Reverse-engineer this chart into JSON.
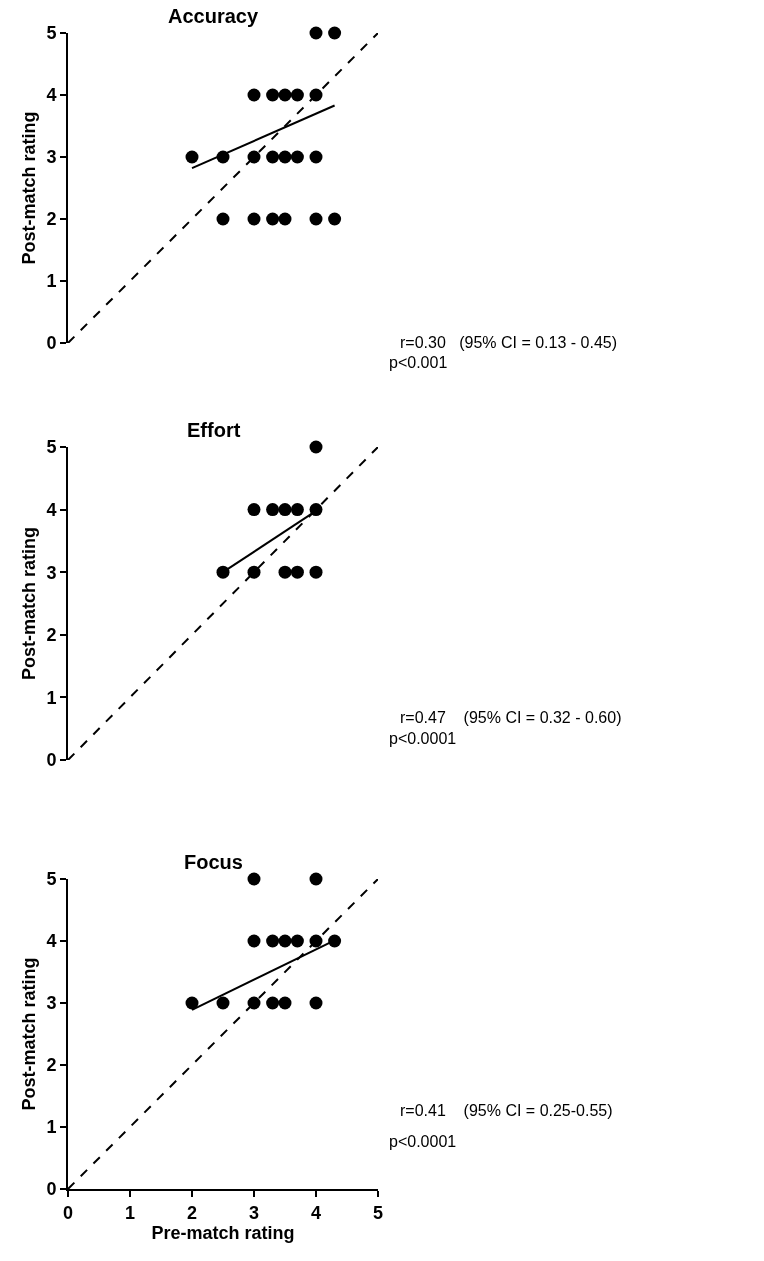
{
  "chart_data": [
    {
      "type": "scatter",
      "title": "Accuracy",
      "ylabel": "Post-match rating",
      "xlim": [
        0,
        5
      ],
      "ylim": [
        0,
        5
      ],
      "yticks": [
        0,
        1,
        2,
        3,
        4,
        5
      ],
      "tick_labels": "y",
      "series": [
        {
          "color": "#000000",
          "marker": "circle",
          "x": [
            4,
            4.3,
            3,
            3.3,
            3.5,
            3.7,
            4,
            2,
            2.5,
            3,
            3.3,
            3.5,
            3.7,
            4,
            2.5,
            3,
            3.3,
            3.5,
            4,
            4.3
          ],
          "values": [
            5,
            5,
            4,
            4,
            4,
            4,
            4,
            3,
            3,
            3,
            3,
            3,
            3,
            3,
            2,
            2,
            2,
            2,
            2,
            2
          ]
        },
        {
          "type": "line",
          "color": "#000000",
          "marker": "none",
          "line_style": "solid",
          "x": [
            2,
            4.3
          ],
          "values": [
            2.82,
            3.83
          ]
        },
        {
          "type": "line",
          "color": "#000000",
          "marker": "none",
          "line_style": "dashed",
          "x": [
            0,
            5
          ],
          "values": [
            0,
            5
          ]
        }
      ],
      "annotations": [
        "r=0.30   (95% CI = 0.13 - 0.45)",
        "p<0.001"
      ]
    },
    {
      "type": "scatter",
      "title": "Effort",
      "ylabel": "Post-match rating",
      "xlim": [
        0,
        5
      ],
      "ylim": [
        0,
        5
      ],
      "yticks": [
        0,
        1,
        2,
        3,
        4,
        5
      ],
      "tick_labels": "y",
      "series": [
        {
          "color": "#000000",
          "marker": "circle",
          "x": [
            4,
            3,
            3.3,
            3.5,
            3.7,
            4,
            2.5,
            3,
            3.5,
            3.7,
            4
          ],
          "values": [
            5,
            4,
            4,
            4,
            4,
            4,
            3,
            3,
            3,
            3,
            3
          ]
        },
        {
          "type": "line",
          "color": "#000000",
          "marker": "none",
          "line_style": "solid",
          "x": [
            2.5,
            4
          ],
          "values": [
            3.0,
            3.98
          ]
        },
        {
          "type": "line",
          "color": "#000000",
          "marker": "none",
          "line_style": "dashed",
          "x": [
            0,
            5
          ],
          "values": [
            0,
            5
          ]
        }
      ],
      "annotations": [
        "r=0.47    (95% CI = 0.32 - 0.60)",
        "p<0.0001"
      ]
    },
    {
      "type": "scatter",
      "title": "Focus",
      "xlabel": "Pre-match rating",
      "ylabel": "Post-match rating",
      "xlim": [
        0,
        5
      ],
      "ylim": [
        0,
        5
      ],
      "xticks": [
        0,
        1,
        2,
        3,
        4,
        5
      ],
      "yticks": [
        0,
        1,
        2,
        3,
        4,
        5
      ],
      "series": [
        {
          "color": "#000000",
          "marker": "circle",
          "x": [
            3,
            4,
            3,
            3.3,
            3.5,
            3.7,
            4,
            4.3,
            2,
            2.5,
            3,
            3.3,
            3.5,
            4
          ],
          "values": [
            5,
            5,
            4,
            4,
            4,
            4,
            4,
            4,
            3,
            3,
            3,
            3,
            3,
            3
          ]
        },
        {
          "type": "line",
          "color": "#000000",
          "marker": "none",
          "line_style": "solid",
          "x": [
            2,
            4.3
          ],
          "values": [
            2.89,
            4.01
          ]
        },
        {
          "type": "line",
          "color": "#000000",
          "marker": "none",
          "line_style": "dashed",
          "x": [
            0,
            5
          ],
          "values": [
            0,
            5
          ]
        }
      ],
      "annotations": [
        "r=0.41    (95% CI = 0.25-0.55)",
        "p<0.0001"
      ]
    }
  ]
}
